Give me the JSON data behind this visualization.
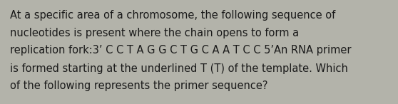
{
  "background_color": "#b3b3aa",
  "text_color": "#1a1a1a",
  "font_size": 10.5,
  "font_family": "DejaVu Sans",
  "lines": [
    "At a specific area of a chromosome, the following sequence of",
    "nucleotides is present where the chain opens to form a",
    "replication fork:3’ C C T A G G C T G C A A T C C 5’An RNA primer",
    "is formed starting at the underlined T (T) of the template. Which",
    "of the following represents the primer sequence?"
  ],
  "figwidth": 5.58,
  "figheight": 1.46,
  "dpi": 100
}
